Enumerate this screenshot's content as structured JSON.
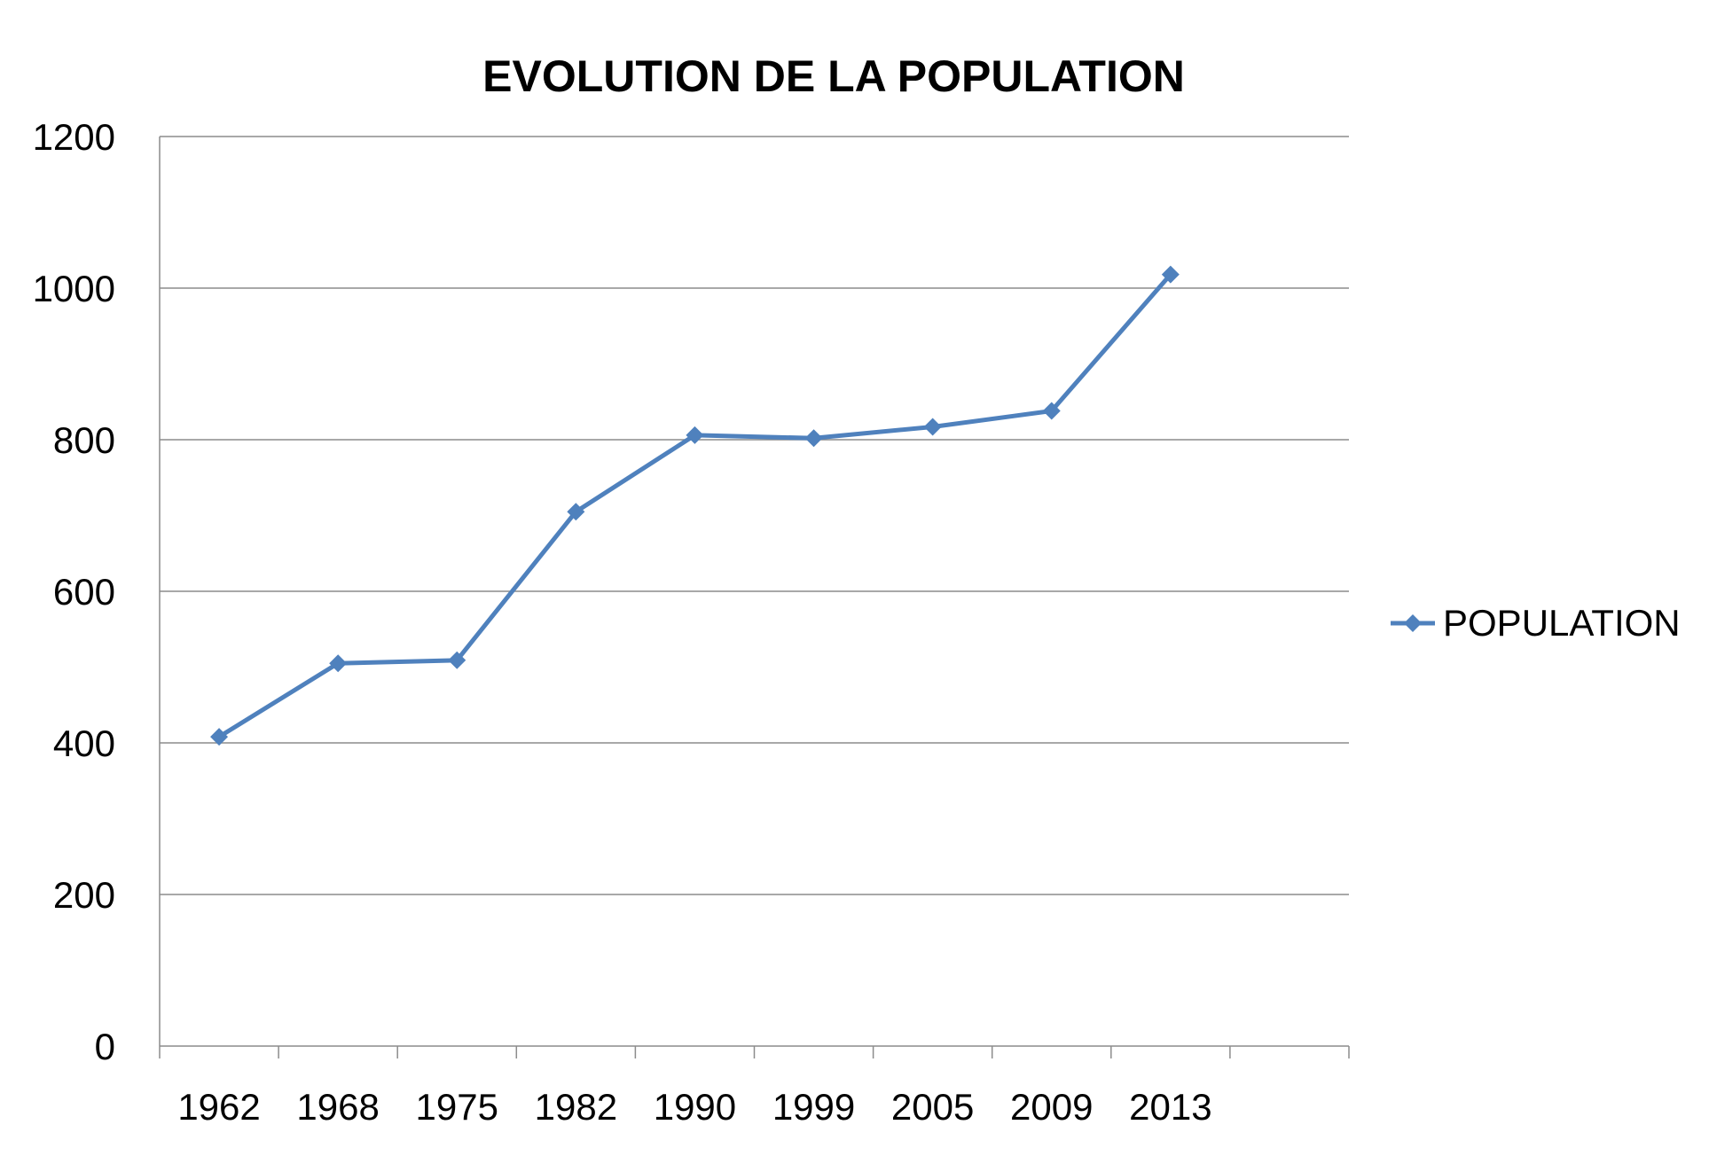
{
  "chart_data": {
    "type": "line",
    "title": "EVOLUTION DE LA POPULATION",
    "xlabel": "",
    "ylabel": "",
    "categories": [
      "1962",
      "1968",
      "1975",
      "1982",
      "1990",
      "1999",
      "2005",
      "2009",
      "2013"
    ],
    "series": [
      {
        "name": "POPULATION",
        "values": [
          408,
          505,
          509,
          705,
          806,
          802,
          817,
          838,
          1018
        ]
      }
    ],
    "ylim": [
      0,
      1200
    ],
    "yticks": [
      0,
      200,
      400,
      600,
      800,
      1000,
      1200
    ],
    "grid": true,
    "legend_position": "right",
    "colors": {
      "series": "#4f81bd",
      "grid": "#8c8c8c",
      "axis": "#8c8c8c"
    }
  }
}
